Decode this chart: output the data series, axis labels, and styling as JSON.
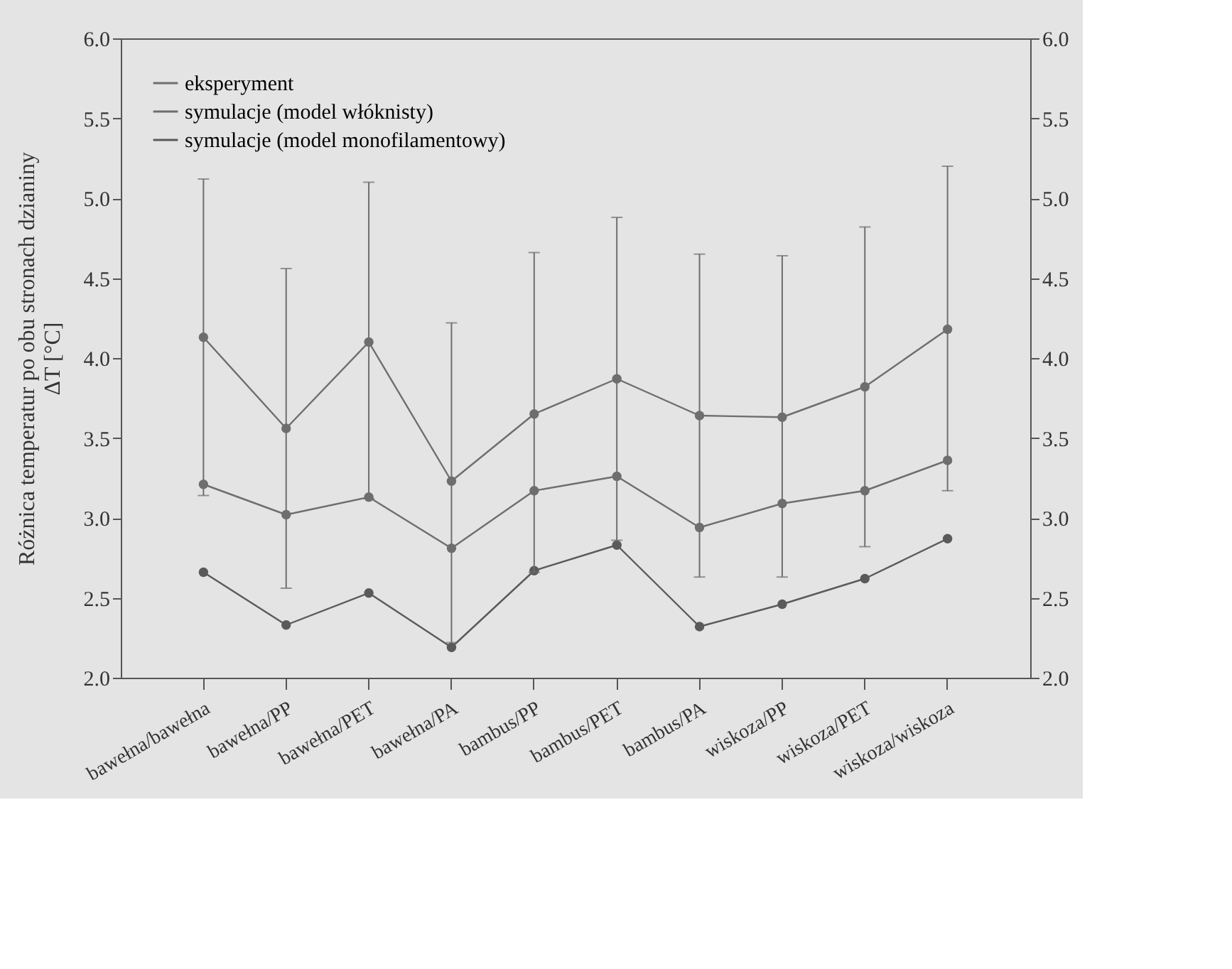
{
  "chart_data": {
    "type": "line",
    "ylabel": "Różnica temperatur  po obu stronach dzianiny\nΔT [°C]",
    "categories": [
      "bawełna/bawełna",
      "bawełna/PP",
      "bawełna/PET",
      "bawełna/PA",
      "bambus/PP",
      "bambus/PET",
      "bambus/PA",
      "wiskoza/PP",
      "wiskoza/PET",
      "wiskoza/wiskoza"
    ],
    "series": [
      {
        "name": "eksperyment",
        "color": "#6e6e6e",
        "values": [
          4.13,
          3.56,
          4.1,
          3.23,
          3.65,
          3.87,
          3.64,
          3.63,
          3.82,
          4.18
        ],
        "errors": [
          [
            3.14,
            5.12
          ],
          [
            2.56,
            4.56
          ],
          [
            3.12,
            5.1
          ],
          [
            2.22,
            4.22
          ],
          [
            2.66,
            4.66
          ],
          [
            2.86,
            4.88
          ],
          [
            2.63,
            4.65
          ],
          [
            2.63,
            4.64
          ],
          [
            2.82,
            4.82
          ],
          [
            3.17,
            5.2
          ]
        ]
      },
      {
        "name": "symulacje (model włóknisty)",
        "color": "#6e6e6e",
        "values": [
          3.21,
          3.02,
          3.13,
          2.81,
          3.17,
          3.26,
          2.94,
          3.09,
          3.17,
          3.36
        ]
      },
      {
        "name": "symulacje (model monofilamentowy)",
        "color": "#5a5a5a",
        "values": [
          2.66,
          2.33,
          2.53,
          2.19,
          2.67,
          2.83,
          2.32,
          2.46,
          2.62,
          2.87
        ]
      }
    ],
    "ylim": [
      2.0,
      6.0
    ],
    "yticks": [
      {
        "value": 2.0,
        "label": "2.0"
      },
      2.5,
      {
        "value": 3.0,
        "label": "3.0"
      },
      3.5,
      {
        "value": 4.0,
        "label": "4.0"
      },
      4.5,
      {
        "value": 5.0,
        "label": "5.0"
      },
      5.5,
      {
        "value": 6.0,
        "label": "6.0"
      }
    ],
    "y2lim": [
      2.0,
      6.0
    ],
    "y2ticks": [
      {
        "value": 2.0,
        "label": "2.0"
      },
      2.5,
      {
        "value": 3.0,
        "label": "3.0"
      },
      3.5,
      {
        "value": 4.0,
        "label": "4.0"
      },
      4.5,
      {
        "value": 5.0,
        "label": "5.0"
      },
      5.5,
      {
        "value": 6.0,
        "label": "6.0"
      }
    ],
    "marker": "circle",
    "line_style": "solid",
    "grid": false,
    "legend": "top left"
  }
}
